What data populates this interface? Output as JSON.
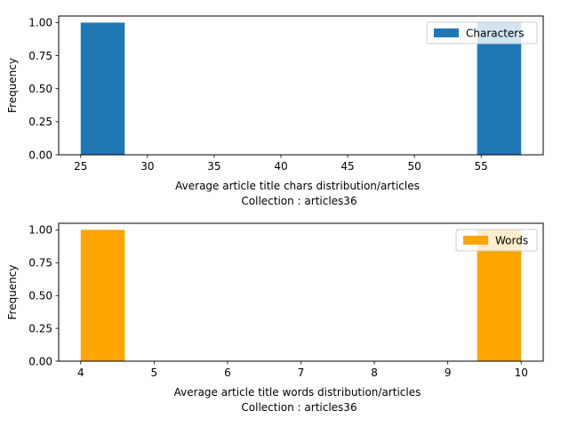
{
  "chart_data": [
    {
      "type": "histogram",
      "ylabel": "Frequency",
      "xlabel_line1": "Average article title chars distribution/articles",
      "xlabel_line2": "Collection : articles36",
      "legend": "Characters",
      "legend_position": "top-right",
      "color": "#1f77b4",
      "xlim": [
        23.35,
        59.65
      ],
      "ylim": [
        0,
        1.05
      ],
      "x_ticks": [
        25,
        30,
        35,
        40,
        45,
        50,
        55
      ],
      "y_ticks": [
        0.0,
        0.25,
        0.5,
        0.75,
        1.0
      ],
      "bins": [
        {
          "x0": 25.0,
          "x1": 28.3,
          "count": 1
        },
        {
          "x0": 28.3,
          "x1": 31.6,
          "count": 0
        },
        {
          "x0": 31.6,
          "x1": 34.9,
          "count": 0
        },
        {
          "x0": 34.9,
          "x1": 38.2,
          "count": 0
        },
        {
          "x0": 38.2,
          "x1": 41.5,
          "count": 0
        },
        {
          "x0": 41.5,
          "x1": 44.8,
          "count": 0
        },
        {
          "x0": 44.8,
          "x1": 48.1,
          "count": 0
        },
        {
          "x0": 48.1,
          "x1": 51.4,
          "count": 0
        },
        {
          "x0": 51.4,
          "x1": 54.7,
          "count": 0
        },
        {
          "x0": 54.7,
          "x1": 58.0,
          "count": 1
        }
      ]
    },
    {
      "type": "histogram",
      "ylabel": "Frequency",
      "xlabel_line1": "Average article title words distribution/articles",
      "xlabel_line2": "Collection : articles36",
      "legend": "Words",
      "legend_position": "top-right",
      "color": "#ffa500",
      "xlim": [
        3.7,
        10.3
      ],
      "ylim": [
        0,
        1.05
      ],
      "x_ticks": [
        4,
        5,
        6,
        7,
        8,
        9,
        10
      ],
      "y_ticks": [
        0.0,
        0.25,
        0.5,
        0.75,
        1.0
      ],
      "bins": [
        {
          "x0": 4.0,
          "x1": 4.6,
          "count": 1
        },
        {
          "x0": 4.6,
          "x1": 5.2,
          "count": 0
        },
        {
          "x0": 5.2,
          "x1": 5.8,
          "count": 0
        },
        {
          "x0": 5.8,
          "x1": 6.4,
          "count": 0
        },
        {
          "x0": 6.4,
          "x1": 7.0,
          "count": 0
        },
        {
          "x0": 7.0,
          "x1": 7.6,
          "count": 0
        },
        {
          "x0": 7.6,
          "x1": 8.2,
          "count": 0
        },
        {
          "x0": 8.2,
          "x1": 8.8,
          "count": 0
        },
        {
          "x0": 8.8,
          "x1": 9.4,
          "count": 0
        },
        {
          "x0": 9.4,
          "x1": 10.0,
          "count": 1
        }
      ]
    }
  ]
}
